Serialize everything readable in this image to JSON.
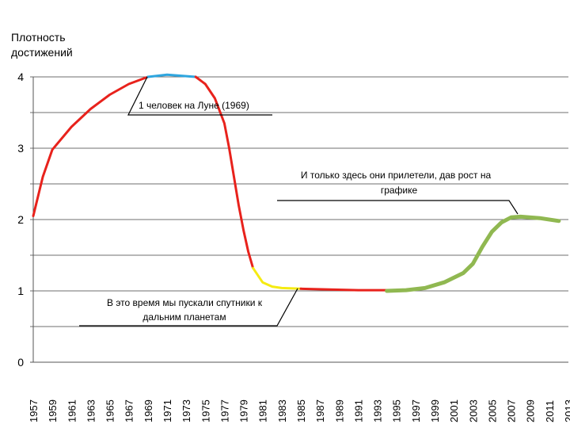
{
  "chart_data": {
    "type": "line",
    "title": "",
    "ylabel_lines": [
      "Плотность",
      "достижений"
    ],
    "xlabel": "",
    "ylim": [
      0,
      4
    ],
    "yticks": [
      0,
      1,
      2,
      3,
      4
    ],
    "xlim": [
      1957,
      2013
    ],
    "xticks": [
      1957,
      1959,
      1961,
      1963,
      1965,
      1967,
      1969,
      1971,
      1973,
      1975,
      1977,
      1979,
      1981,
      1983,
      1985,
      1987,
      1989,
      1991,
      1993,
      1995,
      1997,
      1999,
      2001,
      2003,
      2005,
      2007,
      2009,
      2011,
      2013
    ],
    "grid": true,
    "series": [
      {
        "color": "#e8221c",
        "width": 3,
        "points": [
          [
            1957,
            2.05
          ],
          [
            1958,
            2.6
          ],
          [
            1959,
            2.98
          ],
          [
            1961,
            3.3
          ],
          [
            1963,
            3.55
          ],
          [
            1965,
            3.75
          ],
          [
            1967,
            3.9
          ],
          [
            1969,
            4.0
          ]
        ]
      },
      {
        "color": "#2fa6df",
        "width": 3,
        "points": [
          [
            1969,
            4.0
          ],
          [
            1971,
            4.03
          ],
          [
            1974,
            4.0
          ]
        ]
      },
      {
        "color": "#e8221c",
        "width": 3,
        "points": [
          [
            1974,
            4.0
          ],
          [
            1975,
            3.9
          ],
          [
            1976,
            3.7
          ],
          [
            1977,
            3.35
          ],
          [
            1977.5,
            3.0
          ],
          [
            1978,
            2.6
          ],
          [
            1978.5,
            2.2
          ],
          [
            1979,
            1.85
          ],
          [
            1979.5,
            1.55
          ],
          [
            1980,
            1.32
          ]
        ]
      },
      {
        "color": "#f5eb12",
        "width": 3,
        "points": [
          [
            1980,
            1.32
          ],
          [
            1981,
            1.12
          ],
          [
            1982,
            1.06
          ],
          [
            1983,
            1.04
          ],
          [
            1985,
            1.03
          ]
        ]
      },
      {
        "color": "#e8221c",
        "width": 3,
        "points": [
          [
            1985,
            1.03
          ],
          [
            1988,
            1.02
          ],
          [
            1991,
            1.01
          ],
          [
            1994,
            1.01
          ]
        ]
      },
      {
        "color": "#90b851",
        "width": 5,
        "points": [
          [
            1994,
            1.0
          ],
          [
            1996,
            1.01
          ],
          [
            1998,
            1.04
          ],
          [
            2000,
            1.12
          ],
          [
            2002,
            1.25
          ],
          [
            2003,
            1.38
          ],
          [
            2004,
            1.62
          ],
          [
            2005,
            1.83
          ],
          [
            2006,
            1.96
          ],
          [
            2007,
            2.03
          ],
          [
            2008,
            2.04
          ],
          [
            2010,
            2.02
          ],
          [
            2012,
            1.98
          ]
        ]
      }
    ],
    "annotations": [
      {
        "lines": [
          "1 человек на Луне (1969)"
        ]
      },
      {
        "lines": [
          "И только здесь они прилетели, дав рост на",
          "графике"
        ]
      },
      {
        "lines": [
          "В это время мы пускали спутники к",
          "дальним планетам"
        ]
      }
    ]
  }
}
